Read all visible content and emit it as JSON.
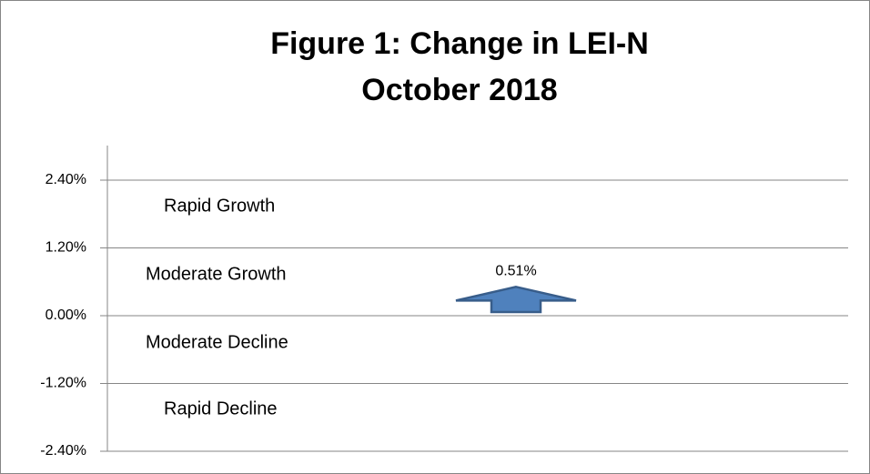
{
  "chart_data": {
    "type": "arrow",
    "title": [
      "Figure 1:  Change in LEI-N",
      "October 2018"
    ],
    "categories": [
      null
    ],
    "values": [
      0.51
    ],
    "value_labels": [
      "0.51%"
    ],
    "color": "#4f81bd",
    "ylim": [
      -2.4,
      3.0
    ],
    "yticks": [
      {
        "value": 2.4,
        "label": "2.40%"
      },
      {
        "value": 1.2,
        "label": "1.20%"
      },
      {
        "value": 0,
        "label": "0.00%"
      },
      {
        "value": -1.2,
        "label": "-1.20%"
      },
      {
        "value": -2.4,
        "label": "-2.40%"
      }
    ],
    "grid": true,
    "annotations": [
      "Rapid Growth",
      "Moderate Growth",
      "Moderate Decline",
      "Rapid Decline"
    ]
  }
}
